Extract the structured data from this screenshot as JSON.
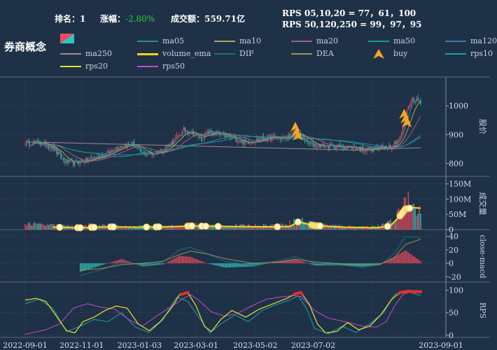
{
  "header": {
    "rank_label": "排名：",
    "rank_value": "1",
    "change_label": "涨幅：",
    "change_value": "-2.80%",
    "amount_label": "成交额：",
    "amount_value": "559.71亿",
    "rps_line1": "RPS 05,10,20 = 77，61，100",
    "rps_line2": "RPS 50,120,250 = 99，97，95"
  },
  "title": "券商概念",
  "legend": [
    {
      "label": "ma05",
      "color": "#2a8a9c"
    },
    {
      "label": "ma10",
      "color": "#b3a45a"
    },
    {
      "label": "ma20",
      "color": "#a35a8a"
    },
    {
      "label": "ma50",
      "color": "#1c9c7c"
    },
    {
      "label": "ma120",
      "color": "#2f7fc0"
    },
    {
      "label": "ma250",
      "color": "#a08a90"
    },
    {
      "label": "volume_ema",
      "color": "#ffd21a"
    },
    {
      "label": "DIF",
      "color": "#1b6f86"
    },
    {
      "label": "DEA",
      "color": "#a0905a"
    },
    {
      "label": "buy",
      "color": "#f5a623"
    },
    {
      "label": "rps10",
      "color": "#1aa2b0"
    },
    {
      "label": "rps20",
      "color": "#e8e02a"
    },
    {
      "label": "rps50",
      "color": "#c24ad0"
    }
  ],
  "chart_data": {
    "type": "candlestick",
    "x_ticks": [
      "2022-09-01",
      "2022-11-01",
      "2023-01-03",
      "2023-03-01",
      "2023-05-02",
      "2023-07-02",
      "2023-09-01"
    ],
    "panels": [
      {
        "name": "price",
        "ylabel": "股价",
        "ticks": [
          800,
          900,
          1000
        ],
        "ylim": [
          755,
          1100
        ]
      },
      {
        "name": "volume",
        "ylabel": "成交量",
        "ticks": [
          "0",
          "50M",
          "100M",
          "150M"
        ],
        "ylim": [
          0,
          170
        ]
      },
      {
        "name": "macd",
        "ylabel": "close-macd",
        "ticks": [
          -20,
          0,
          20,
          40
        ],
        "ylim": [
          -28,
          48
        ]
      },
      {
        "name": "rps",
        "ylabel": "RPS",
        "ticks": [
          0,
          50,
          100
        ],
        "ylim": [
          -5,
          115
        ]
      }
    ],
    "price_keypoints": [
      [
        0,
        870
      ],
      [
        10,
        872
      ],
      [
        20,
        855
      ],
      [
        28,
        808
      ],
      [
        35,
        800
      ],
      [
        45,
        812
      ],
      [
        58,
        830
      ],
      [
        68,
        860
      ],
      [
        78,
        868
      ],
      [
        85,
        835
      ],
      [
        92,
        833
      ],
      [
        100,
        848
      ],
      [
        108,
        880
      ],
      [
        115,
        915
      ],
      [
        122,
        905
      ],
      [
        128,
        885
      ],
      [
        133,
        910
      ],
      [
        140,
        902
      ],
      [
        150,
        888
      ],
      [
        160,
        872
      ],
      [
        170,
        885
      ],
      [
        180,
        892
      ],
      [
        188,
        886
      ],
      [
        196,
        905
      ],
      [
        200,
        895
      ],
      [
        205,
        870
      ],
      [
        212,
        862
      ],
      [
        220,
        860
      ],
      [
        230,
        858
      ],
      [
        238,
        855
      ],
      [
        245,
        848
      ],
      [
        252,
        850
      ],
      [
        260,
        858
      ],
      [
        266,
        862
      ],
      [
        272,
        890
      ],
      [
        276,
        955
      ],
      [
        278,
        1000
      ],
      [
        281,
        1025
      ],
      [
        284,
        1020
      ],
      [
        287,
        1015
      ]
    ],
    "volume_keypoints": [
      [
        0,
        20
      ],
      [
        20,
        14
      ],
      [
        35,
        11
      ],
      [
        50,
        16
      ],
      [
        75,
        9
      ],
      [
        110,
        12
      ],
      [
        120,
        18
      ],
      [
        140,
        13
      ],
      [
        160,
        13
      ],
      [
        185,
        15
      ],
      [
        200,
        32
      ],
      [
        210,
        18
      ],
      [
        240,
        9
      ],
      [
        258,
        12
      ],
      [
        268,
        30
      ],
      [
        274,
        80
      ],
      [
        278,
        120
      ],
      [
        282,
        70
      ],
      [
        287,
        55
      ]
    ],
    "volume_ema_keypoints": [
      [
        20,
        8
      ],
      [
        40,
        6
      ],
      [
        60,
        9
      ],
      [
        80,
        8
      ],
      [
        100,
        9
      ],
      [
        110,
        10
      ],
      [
        120,
        12
      ],
      [
        150,
        10
      ],
      [
        180,
        9
      ],
      [
        192,
        10
      ],
      [
        198,
        25
      ],
      [
        210,
        13
      ],
      [
        230,
        8
      ],
      [
        255,
        6
      ],
      [
        265,
        12
      ],
      [
        272,
        45
      ],
      [
        276,
        68
      ],
      [
        282,
        72
      ],
      [
        287,
        70
      ]
    ],
    "dif_keypoints": [
      [
        40,
        -18
      ],
      [
        55,
        -10
      ],
      [
        70,
        2
      ],
      [
        85,
        -3
      ],
      [
        100,
        2
      ],
      [
        112,
        20
      ],
      [
        120,
        24
      ],
      [
        132,
        14
      ],
      [
        145,
        3
      ],
      [
        165,
        -3
      ],
      [
        185,
        4
      ],
      [
        196,
        10
      ],
      [
        210,
        0
      ],
      [
        230,
        -3
      ],
      [
        245,
        -6
      ],
      [
        258,
        -2
      ],
      [
        268,
        15
      ],
      [
        276,
        40
      ],
      [
        287,
        38
      ]
    ],
    "dea_keypoints": [
      [
        40,
        -10
      ],
      [
        55,
        -8
      ],
      [
        70,
        -2
      ],
      [
        85,
        0
      ],
      [
        100,
        3
      ],
      [
        112,
        13
      ],
      [
        120,
        18
      ],
      [
        132,
        14
      ],
      [
        145,
        7
      ],
      [
        165,
        0
      ],
      [
        185,
        2
      ],
      [
        196,
        6
      ],
      [
        210,
        2
      ],
      [
        230,
        -1
      ],
      [
        245,
        -3
      ],
      [
        258,
        -1
      ],
      [
        268,
        9
      ],
      [
        276,
        28
      ],
      [
        287,
        36
      ]
    ],
    "rps20_keypoints": [
      [
        0,
        78
      ],
      [
        8,
        82
      ],
      [
        15,
        75
      ],
      [
        22,
        45
      ],
      [
        30,
        10
      ],
      [
        36,
        5
      ],
      [
        42,
        30
      ],
      [
        50,
        40
      ],
      [
        58,
        55
      ],
      [
        66,
        65
      ],
      [
        74,
        60
      ],
      [
        82,
        25
      ],
      [
        90,
        10
      ],
      [
        98,
        30
      ],
      [
        106,
        60
      ],
      [
        112,
        90
      ],
      [
        118,
        95
      ],
      [
        124,
        65
      ],
      [
        130,
        20
      ],
      [
        135,
        8
      ],
      [
        142,
        35
      ],
      [
        150,
        55
      ],
      [
        160,
        40
      ],
      [
        170,
        58
      ],
      [
        180,
        70
      ],
      [
        190,
        82
      ],
      [
        196,
        92
      ],
      [
        200,
        95
      ],
      [
        206,
        70
      ],
      [
        212,
        25
      ],
      [
        218,
        5
      ],
      [
        226,
        8
      ],
      [
        234,
        28
      ],
      [
        242,
        12
      ],
      [
        250,
        20
      ],
      [
        258,
        45
      ],
      [
        266,
        80
      ],
      [
        272,
        95
      ],
      [
        278,
        98
      ],
      [
        287,
        96
      ]
    ],
    "rps50_keypoints": [
      [
        0,
        2
      ],
      [
        15,
        12
      ],
      [
        25,
        25
      ],
      [
        35,
        60
      ],
      [
        45,
        70
      ],
      [
        55,
        62
      ],
      [
        65,
        58
      ],
      [
        75,
        35
      ],
      [
        85,
        20
      ],
      [
        95,
        42
      ],
      [
        105,
        62
      ],
      [
        115,
        82
      ],
      [
        120,
        90
      ],
      [
        125,
        80
      ],
      [
        135,
        52
      ],
      [
        145,
        42
      ],
      [
        155,
        50
      ],
      [
        165,
        66
      ],
      [
        175,
        80
      ],
      [
        185,
        85
      ],
      [
        195,
        88
      ],
      [
        200,
        86
      ],
      [
        210,
        55
      ],
      [
        220,
        38
      ],
      [
        232,
        30
      ],
      [
        245,
        20
      ],
      [
        255,
        18
      ],
      [
        262,
        30
      ],
      [
        268,
        65
      ],
      [
        274,
        90
      ],
      [
        278,
        97
      ],
      [
        287,
        97
      ]
    ],
    "rps10_keypoints": [
      [
        0,
        70
      ],
      [
        10,
        80
      ],
      [
        20,
        60
      ],
      [
        30,
        8
      ],
      [
        40,
        20
      ],
      [
        50,
        35
      ],
      [
        60,
        30
      ],
      [
        70,
        50
      ],
      [
        80,
        18
      ],
      [
        90,
        6
      ],
      [
        100,
        35
      ],
      [
        110,
        85
      ],
      [
        118,
        75
      ],
      [
        126,
        40
      ],
      [
        134,
        5
      ],
      [
        142,
        25
      ],
      [
        152,
        45
      ],
      [
        162,
        30
      ],
      [
        172,
        55
      ],
      [
        182,
        68
      ],
      [
        192,
        78
      ],
      [
        198,
        88
      ],
      [
        204,
        60
      ],
      [
        210,
        15
      ],
      [
        220,
        3
      ],
      [
        230,
        20
      ],
      [
        240,
        6
      ],
      [
        250,
        25
      ],
      [
        260,
        50
      ],
      [
        268,
        90
      ],
      [
        274,
        98
      ],
      [
        280,
        95
      ],
      [
        287,
        88
      ]
    ],
    "buy_signals": [
      {
        "i": 196,
        "price": 925
      },
      {
        "i": 197,
        "price": 908
      },
      {
        "i": 198,
        "price": 894
      },
      {
        "i": 275,
        "price": 970
      },
      {
        "i": 276,
        "price": 954
      },
      {
        "i": 277,
        "price": 940
      }
    ]
  }
}
